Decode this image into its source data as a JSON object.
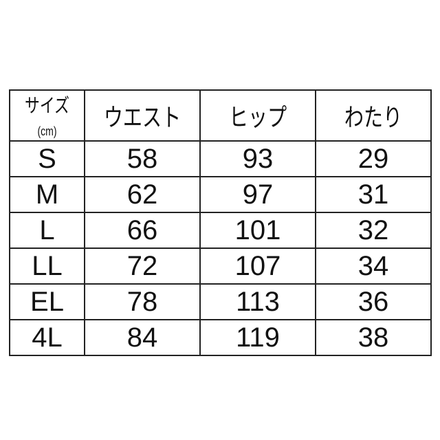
{
  "table": {
    "headers": {
      "size": "サイズ",
      "unit": "(cm)",
      "waist": "ウエスト",
      "hip": "ヒップ",
      "thigh": "わたり"
    },
    "rows": [
      {
        "size": "S",
        "waist": "58",
        "hip": "93",
        "thigh": "29"
      },
      {
        "size": "M",
        "waist": "62",
        "hip": "97",
        "thigh": "31"
      },
      {
        "size": "L",
        "waist": "66",
        "hip": "101",
        "thigh": "32"
      },
      {
        "size": "LL",
        "waist": "72",
        "hip": "107",
        "thigh": "34"
      },
      {
        "size": "EL",
        "waist": "78",
        "hip": "113",
        "thigh": "36"
      },
      {
        "size": "4L",
        "waist": "84",
        "hip": "119",
        "thigh": "38"
      }
    ]
  }
}
